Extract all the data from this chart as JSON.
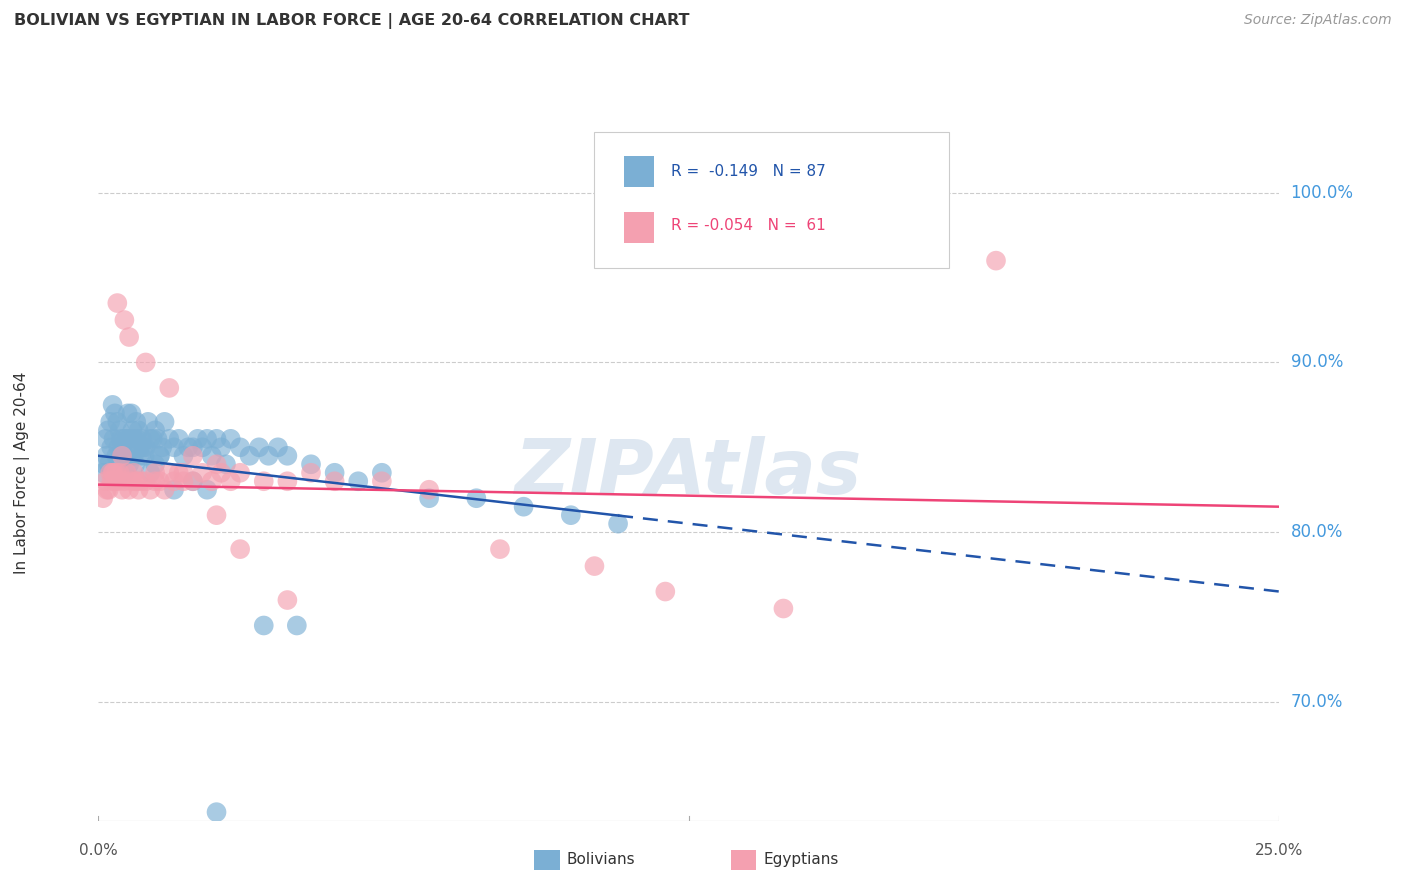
{
  "title": "BOLIVIAN VS EGYPTIAN IN LABOR FORCE | AGE 20-64 CORRELATION CHART",
  "source": "Source: ZipAtlas.com",
  "ylabel_label": "In Labor Force | Age 20-64",
  "y_ticks": [
    70.0,
    80.0,
    90.0,
    100.0
  ],
  "x_range": [
    0.0,
    25.0
  ],
  "y_range": [
    63.0,
    104.0
  ],
  "blue_color": "#7BAFD4",
  "pink_color": "#F4A0B0",
  "blue_line_color": "#2255AA",
  "pink_line_color": "#EE4477",
  "watermark_color": "#C8D8E8",
  "legend_R_blue": "R =  -0.149",
  "legend_N_blue": "N = 87",
  "legend_R_pink": "R = -0.054",
  "legend_N_pink": "N =  61",
  "bolivians_x": [
    0.1,
    0.12,
    0.15,
    0.17,
    0.2,
    0.22,
    0.25,
    0.27,
    0.3,
    0.32,
    0.35,
    0.38,
    0.4,
    0.42,
    0.45,
    0.48,
    0.5,
    0.52,
    0.55,
    0.58,
    0.6,
    0.62,
    0.65,
    0.68,
    0.7,
    0.72,
    0.75,
    0.78,
    0.8,
    0.82,
    0.85,
    0.88,
    0.9,
    0.92,
    0.95,
    0.98,
    1.0,
    1.05,
    1.1,
    1.15,
    1.2,
    1.25,
    1.3,
    1.35,
    1.4,
    1.5,
    1.6,
    1.7,
    1.8,
    1.9,
    2.0,
    2.1,
    2.2,
    2.3,
    2.4,
    2.5,
    2.6,
    2.7,
    2.8,
    3.0,
    3.2,
    3.4,
    3.6,
    3.8,
    4.0,
    4.5,
    5.0,
    5.5,
    6.0,
    7.0,
    8.0,
    9.0,
    10.0,
    11.0,
    0.45,
    0.55,
    0.65,
    0.75,
    1.1,
    1.2,
    1.3,
    1.6,
    2.0,
    2.3,
    3.5,
    4.2,
    2.5
  ],
  "bolivians_y": [
    83.5,
    84.0,
    85.5,
    84.5,
    86.0,
    84.0,
    86.5,
    85.0,
    87.5,
    85.5,
    87.0,
    84.5,
    86.5,
    85.0,
    86.0,
    85.5,
    85.0,
    84.5,
    85.5,
    84.5,
    85.5,
    87.0,
    85.5,
    84.5,
    87.0,
    86.0,
    85.5,
    84.0,
    86.5,
    85.5,
    86.0,
    85.0,
    84.5,
    85.5,
    85.0,
    84.5,
    85.0,
    86.5,
    85.5,
    85.5,
    86.0,
    85.5,
    84.5,
    85.0,
    86.5,
    85.5,
    85.0,
    85.5,
    84.5,
    85.0,
    85.0,
    85.5,
    85.0,
    85.5,
    84.5,
    85.5,
    85.0,
    84.0,
    85.5,
    85.0,
    84.5,
    85.0,
    84.5,
    85.0,
    84.5,
    84.0,
    83.5,
    83.0,
    83.5,
    82.0,
    82.0,
    81.5,
    81.0,
    80.5,
    83.5,
    83.5,
    84.0,
    84.5,
    83.5,
    84.0,
    84.5,
    82.5,
    83.0,
    82.5,
    74.5,
    74.5,
    63.5
  ],
  "egyptians_x": [
    0.1,
    0.15,
    0.18,
    0.22,
    0.25,
    0.28,
    0.32,
    0.35,
    0.38,
    0.42,
    0.45,
    0.5,
    0.55,
    0.6,
    0.65,
    0.7,
    0.75,
    0.8,
    0.85,
    0.9,
    1.0,
    1.1,
    1.2,
    1.3,
    1.4,
    1.5,
    1.6,
    1.7,
    1.8,
    2.0,
    2.2,
    2.4,
    2.6,
    2.8,
    3.0,
    3.5,
    4.0,
    4.5,
    5.0,
    6.0,
    7.0,
    8.5,
    10.5,
    12.0,
    14.5,
    19.0,
    0.4,
    0.55,
    0.65,
    1.0,
    1.5,
    2.0,
    2.5,
    3.0,
    0.3,
    0.5,
    0.8,
    1.2,
    1.8,
    2.5,
    4.0
  ],
  "egyptians_y": [
    82.0,
    83.0,
    82.5,
    82.5,
    83.5,
    83.0,
    83.5,
    83.0,
    83.5,
    83.0,
    83.5,
    82.5,
    83.0,
    83.5,
    82.5,
    83.0,
    83.5,
    83.0,
    82.5,
    83.0,
    83.0,
    82.5,
    83.0,
    83.0,
    82.5,
    83.5,
    83.0,
    83.5,
    83.0,
    83.0,
    83.5,
    83.0,
    83.5,
    83.0,
    83.5,
    83.0,
    83.0,
    83.5,
    83.0,
    83.0,
    82.5,
    79.0,
    78.0,
    76.5,
    75.5,
    96.0,
    93.5,
    92.5,
    91.5,
    90.0,
    88.5,
    84.5,
    81.0,
    79.0,
    83.5,
    84.5,
    83.0,
    83.5,
    83.5,
    84.0,
    76.0
  ],
  "blue_trend_x0": 0.0,
  "blue_trend_y0": 84.5,
  "blue_trend_x1": 25.0,
  "blue_trend_y1": 76.5,
  "pink_trend_x0": 0.0,
  "pink_trend_y0": 82.8,
  "pink_trend_x1": 25.0,
  "pink_trend_y1": 81.5,
  "blue_solid_max_x": 11.0,
  "pink_solid_max_x": 25.0
}
